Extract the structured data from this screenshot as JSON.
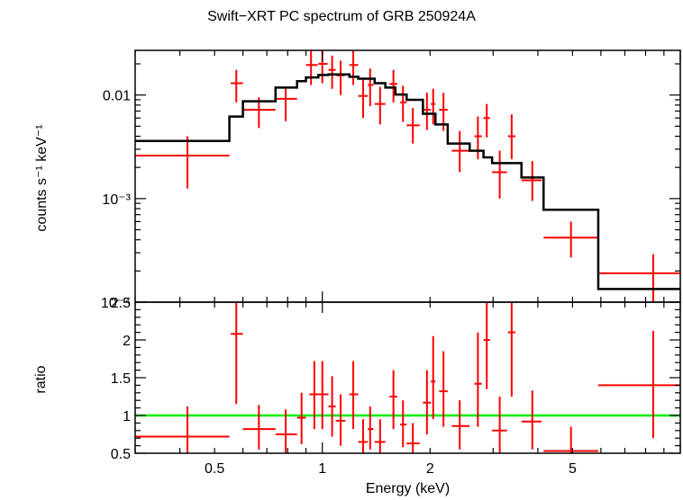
{
  "chart_data": {
    "type": "scatter",
    "title": "Swift−XRT PC spectrum of GRB 250924A",
    "xlabel": "Energy (keV)",
    "xscale": "log",
    "xlim": [
      0.3,
      10
    ],
    "x_ticks": [
      {
        "value": 0.5,
        "label": "0.5"
      },
      {
        "value": 1,
        "label": "1"
      },
      {
        "value": 2,
        "label": "2"
      },
      {
        "value": 5,
        "label": "5"
      }
    ],
    "top_panel": {
      "ylabel": "counts s⁻¹ keV⁻¹",
      "yscale": "log",
      "ylim": [
        0.0001,
        0.027
      ],
      "y_ticks": [
        {
          "value": 0.01,
          "label": "0.01"
        },
        {
          "value": 0.001,
          "label": "10⁻³"
        },
        {
          "value": 0.0001,
          "label": "10⁻⁴"
        }
      ],
      "data_series": {
        "name": "data",
        "color": "#ff0000",
        "points": [
          {
            "x": 0.42,
            "xlo": 0.3,
            "xhi": 0.55,
            "y": 0.0026,
            "ylo": 0.00125,
            "yhi": 0.004
          },
          {
            "x": 0.575,
            "xlo": 0.555,
            "xhi": 0.6,
            "y": 0.013,
            "ylo": 0.0085,
            "yhi": 0.0175
          },
          {
            "x": 0.665,
            "xlo": 0.6,
            "xhi": 0.74,
            "y": 0.0072,
            "ylo": 0.0048,
            "yhi": 0.0095
          },
          {
            "x": 0.79,
            "xlo": 0.74,
            "xhi": 0.85,
            "y": 0.0092,
            "ylo": 0.0056,
            "yhi": 0.012
          },
          {
            "x": 0.93,
            "xlo": 0.9,
            "xhi": 0.97,
            "y": 0.0195,
            "ylo": 0.0125,
            "yhi": 0.027
          },
          {
            "x": 1.0,
            "xlo": 0.975,
            "xhi": 1.035,
            "y": 0.02,
            "ylo": 0.013,
            "yhi": 0.027
          },
          {
            "x": 1.065,
            "xlo": 1.04,
            "xhi": 1.09,
            "y": 0.0175,
            "ylo": 0.0115,
            "yhi": 0.024
          },
          {
            "x": 1.125,
            "xlo": 1.095,
            "xhi": 1.155,
            "y": 0.0155,
            "ylo": 0.01,
            "yhi": 0.0215
          },
          {
            "x": 1.22,
            "xlo": 1.19,
            "xhi": 1.26,
            "y": 0.0195,
            "ylo": 0.0125,
            "yhi": 0.027
          },
          {
            "x": 1.3,
            "xlo": 1.26,
            "xhi": 1.34,
            "y": 0.0098,
            "ylo": 0.006,
            "yhi": 0.0145
          },
          {
            "x": 1.36,
            "xlo": 1.34,
            "xhi": 1.39,
            "y": 0.0125,
            "ylo": 0.0078,
            "yhi": 0.018
          },
          {
            "x": 1.45,
            "xlo": 1.4,
            "xhi": 1.5,
            "y": 0.0082,
            "ylo": 0.0052,
            "yhi": 0.012
          },
          {
            "x": 1.58,
            "xlo": 1.54,
            "xhi": 1.62,
            "y": 0.0128,
            "ylo": 0.0085,
            "yhi": 0.0175
          },
          {
            "x": 1.68,
            "xlo": 1.65,
            "xhi": 1.72,
            "y": 0.0085,
            "ylo": 0.0055,
            "yhi": 0.0123
          },
          {
            "x": 1.79,
            "xlo": 1.72,
            "xhi": 1.87,
            "y": 0.0051,
            "ylo": 0.0034,
            "yhi": 0.0075
          },
          {
            "x": 1.96,
            "xlo": 1.91,
            "xhi": 2.01,
            "y": 0.0072,
            "ylo": 0.0046,
            "yhi": 0.0105
          },
          {
            "x": 2.04,
            "xlo": 2.01,
            "xhi": 2.07,
            "y": 0.0082,
            "ylo": 0.0052,
            "yhi": 0.0115
          },
          {
            "x": 2.18,
            "xlo": 2.12,
            "xhi": 2.24,
            "y": 0.0072,
            "ylo": 0.0045,
            "yhi": 0.0105
          },
          {
            "x": 2.42,
            "xlo": 2.3,
            "xhi": 2.58,
            "y": 0.0029,
            "ylo": 0.0018,
            "yhi": 0.0045
          },
          {
            "x": 2.72,
            "xlo": 2.66,
            "xhi": 2.79,
            "y": 0.004,
            "ylo": 0.0024,
            "yhi": 0.0062
          },
          {
            "x": 2.88,
            "xlo": 2.82,
            "xhi": 2.94,
            "y": 0.006,
            "ylo": 0.0039,
            "yhi": 0.0082
          },
          {
            "x": 3.13,
            "xlo": 2.98,
            "xhi": 3.28,
            "y": 0.0018,
            "ylo": 0.001,
            "yhi": 0.0029
          },
          {
            "x": 3.38,
            "xlo": 3.3,
            "xhi": 3.46,
            "y": 0.004,
            "ylo": 0.0024,
            "yhi": 0.0065
          },
          {
            "x": 3.86,
            "xlo": 3.6,
            "xhi": 4.1,
            "y": 0.0015,
            "ylo": 0.00095,
            "yhi": 0.0023
          },
          {
            "x": 4.95,
            "xlo": 4.15,
            "xhi": 5.9,
            "y": 0.00042,
            "ylo": 0.00027,
            "yhi": 0.0006
          },
          {
            "x": 8.4,
            "xlo": 5.9,
            "xhi": 10.0,
            "y": 0.00019,
            "ylo": 0.0001,
            "yhi": 0.00029
          }
        ]
      },
      "model_series": {
        "name": "model",
        "color": "#000000",
        "steps": [
          {
            "x0": 0.3,
            "x1": 0.55,
            "y": 0.0036
          },
          {
            "x0": 0.55,
            "x1": 0.6,
            "y": 0.0062
          },
          {
            "x0": 0.6,
            "x1": 0.74,
            "y": 0.0087
          },
          {
            "x0": 0.74,
            "x1": 0.85,
            "y": 0.0118
          },
          {
            "x0": 0.85,
            "x1": 0.9,
            "y": 0.0136
          },
          {
            "x0": 0.9,
            "x1": 0.975,
            "y": 0.0148
          },
          {
            "x0": 0.975,
            "x1": 1.04,
            "y": 0.0156
          },
          {
            "x0": 1.04,
            "x1": 1.19,
            "y": 0.0158
          },
          {
            "x0": 1.19,
            "x1": 1.26,
            "y": 0.015
          },
          {
            "x0": 1.26,
            "x1": 1.4,
            "y": 0.0144
          },
          {
            "x0": 1.4,
            "x1": 1.5,
            "y": 0.013
          },
          {
            "x0": 1.5,
            "x1": 1.6,
            "y": 0.0118
          },
          {
            "x0": 1.6,
            "x1": 1.72,
            "y": 0.0101
          },
          {
            "x0": 1.72,
            "x1": 1.91,
            "y": 0.009
          },
          {
            "x0": 1.91,
            "x1": 2.07,
            "y": 0.0066
          },
          {
            "x0": 2.07,
            "x1": 2.24,
            "y": 0.0052
          },
          {
            "x0": 2.24,
            "x1": 2.58,
            "y": 0.0034
          },
          {
            "x0": 2.58,
            "x1": 2.82,
            "y": 0.0029
          },
          {
            "x0": 2.82,
            "x1": 2.98,
            "y": 0.0025
          },
          {
            "x0": 2.98,
            "x1": 3.6,
            "y": 0.0022
          },
          {
            "x0": 3.6,
            "x1": 4.15,
            "y": 0.0016
          },
          {
            "x0": 4.15,
            "x1": 5.9,
            "y": 0.00078
          },
          {
            "x0": 5.9,
            "x1": 10.0,
            "y": 0.000134
          }
        ]
      }
    },
    "bottom_panel": {
      "ylabel": "ratio",
      "yscale": "linear",
      "ylim": [
        0.5,
        2.5
      ],
      "y_ticks": [
        {
          "value": 0.5,
          "label": "0.5"
        },
        {
          "value": 1,
          "label": "1"
        },
        {
          "value": 1.5,
          "label": "1.5"
        },
        {
          "value": 2,
          "label": "2"
        },
        {
          "value": 2.5,
          "label": "2.5"
        }
      ],
      "reference_line": {
        "y": 1.0,
        "color": "#00ee00"
      },
      "data_series": {
        "name": "ratio",
        "color": "#ff0000",
        "points": [
          {
            "x": 0.42,
            "xlo": 0.3,
            "xhi": 0.55,
            "y": 0.72,
            "ylo": 0.5,
            "yhi": 1.12
          },
          {
            "x": 0.575,
            "xlo": 0.555,
            "xhi": 0.6,
            "y": 2.08,
            "ylo": 1.15,
            "yhi": 2.5
          },
          {
            "x": 0.665,
            "xlo": 0.6,
            "xhi": 0.74,
            "y": 0.82,
            "ylo": 0.55,
            "yhi": 1.14
          },
          {
            "x": 0.79,
            "xlo": 0.74,
            "xhi": 0.85,
            "y": 0.75,
            "ylo": 0.5,
            "yhi": 1.08
          },
          {
            "x": 0.875,
            "xlo": 0.85,
            "xhi": 0.9,
            "y": 0.97,
            "ylo": 0.62,
            "yhi": 1.3
          },
          {
            "x": 0.95,
            "xlo": 0.92,
            "xhi": 0.975,
            "y": 1.28,
            "ylo": 0.82,
            "yhi": 1.72
          },
          {
            "x": 1.0,
            "xlo": 0.975,
            "xhi": 1.04,
            "y": 1.28,
            "ylo": 0.82,
            "yhi": 1.72
          },
          {
            "x": 1.065,
            "xlo": 1.04,
            "xhi": 1.09,
            "y": 1.12,
            "ylo": 0.72,
            "yhi": 1.52
          },
          {
            "x": 1.125,
            "xlo": 1.09,
            "xhi": 1.16,
            "y": 0.93,
            "ylo": 0.6,
            "yhi": 1.28
          },
          {
            "x": 1.22,
            "xlo": 1.19,
            "xhi": 1.26,
            "y": 1.28,
            "ylo": 0.82,
            "yhi": 1.72
          },
          {
            "x": 1.3,
            "xlo": 1.26,
            "xhi": 1.34,
            "y": 0.65,
            "ylo": 0.5,
            "yhi": 0.95
          },
          {
            "x": 1.36,
            "xlo": 1.34,
            "xhi": 1.39,
            "y": 0.82,
            "ylo": 0.55,
            "yhi": 1.12
          },
          {
            "x": 1.45,
            "xlo": 1.4,
            "xhi": 1.5,
            "y": 0.65,
            "ylo": 0.5,
            "yhi": 0.95
          },
          {
            "x": 1.58,
            "xlo": 1.54,
            "xhi": 1.62,
            "y": 1.25,
            "ylo": 0.82,
            "yhi": 1.6
          },
          {
            "x": 1.68,
            "xlo": 1.65,
            "xhi": 1.72,
            "y": 0.88,
            "ylo": 0.58,
            "yhi": 1.2
          },
          {
            "x": 1.79,
            "xlo": 1.72,
            "xhi": 1.87,
            "y": 0.63,
            "ylo": 0.5,
            "yhi": 0.9
          },
          {
            "x": 1.96,
            "xlo": 1.91,
            "xhi": 2.01,
            "y": 1.17,
            "ylo": 0.75,
            "yhi": 1.6
          },
          {
            "x": 2.04,
            "xlo": 2.01,
            "xhi": 2.07,
            "y": 1.45,
            "ylo": 0.95,
            "yhi": 2.05
          },
          {
            "x": 2.18,
            "xlo": 2.12,
            "xhi": 2.24,
            "y": 1.32,
            "ylo": 0.85,
            "yhi": 1.85
          },
          {
            "x": 2.42,
            "xlo": 2.3,
            "xhi": 2.58,
            "y": 0.86,
            "ylo": 0.55,
            "yhi": 1.2
          },
          {
            "x": 2.72,
            "xlo": 2.66,
            "xhi": 2.79,
            "y": 1.42,
            "ylo": 0.85,
            "yhi": 2.1
          },
          {
            "x": 2.88,
            "xlo": 2.82,
            "xhi": 2.94,
            "y": 2.0,
            "ylo": 1.35,
            "yhi": 2.5
          },
          {
            "x": 3.13,
            "xlo": 2.98,
            "xhi": 3.28,
            "y": 0.8,
            "ylo": 0.5,
            "yhi": 1.25
          },
          {
            "x": 3.38,
            "xlo": 3.3,
            "xhi": 3.46,
            "y": 2.1,
            "ylo": 1.25,
            "yhi": 2.5
          },
          {
            "x": 3.86,
            "xlo": 3.6,
            "xhi": 4.1,
            "y": 0.92,
            "ylo": 0.55,
            "yhi": 1.33
          },
          {
            "x": 4.95,
            "xlo": 4.15,
            "xhi": 5.9,
            "y": 0.53,
            "ylo": 0.5,
            "yhi": 0.85
          },
          {
            "x": 8.4,
            "xlo": 5.9,
            "xhi": 10.0,
            "y": 1.4,
            "ylo": 0.7,
            "yhi": 2.12
          }
        ]
      }
    }
  }
}
